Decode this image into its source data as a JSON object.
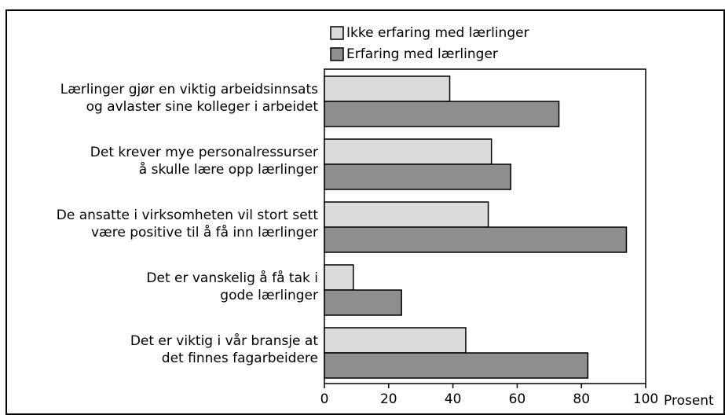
{
  "chart_data": {
    "type": "bar",
    "orientation": "horizontal",
    "categories": [
      [
        "Lærlinger gjør en viktig arbeidsinnsats",
        "og avlaster sine kolleger i arbeidet"
      ],
      [
        "Det krever mye personalressurser",
        "å skulle lære opp lærlinger"
      ],
      [
        "De ansatte i virksomheten vil stort sett",
        "være positive til å få inn lærlinger"
      ],
      [
        "Det er vanskelig å få tak i",
        "gode lærlinger"
      ],
      [
        "Det er viktig i vår bransje at",
        "det finnes fagarbeidere"
      ]
    ],
    "series": [
      {
        "name": "Ikke erfaring med lærlinger",
        "color": "#dcdcdc",
        "values": [
          39,
          52,
          51,
          9,
          44
        ]
      },
      {
        "name": "Erfaring med lærlinger",
        "color": "#8e8e8e",
        "values": [
          73,
          58,
          94,
          24,
          82
        ]
      }
    ],
    "xlim": [
      0,
      100
    ],
    "xticks": [
      0,
      20,
      40,
      60,
      80,
      100
    ],
    "xlabel": "Prosent",
    "grid": false
  }
}
